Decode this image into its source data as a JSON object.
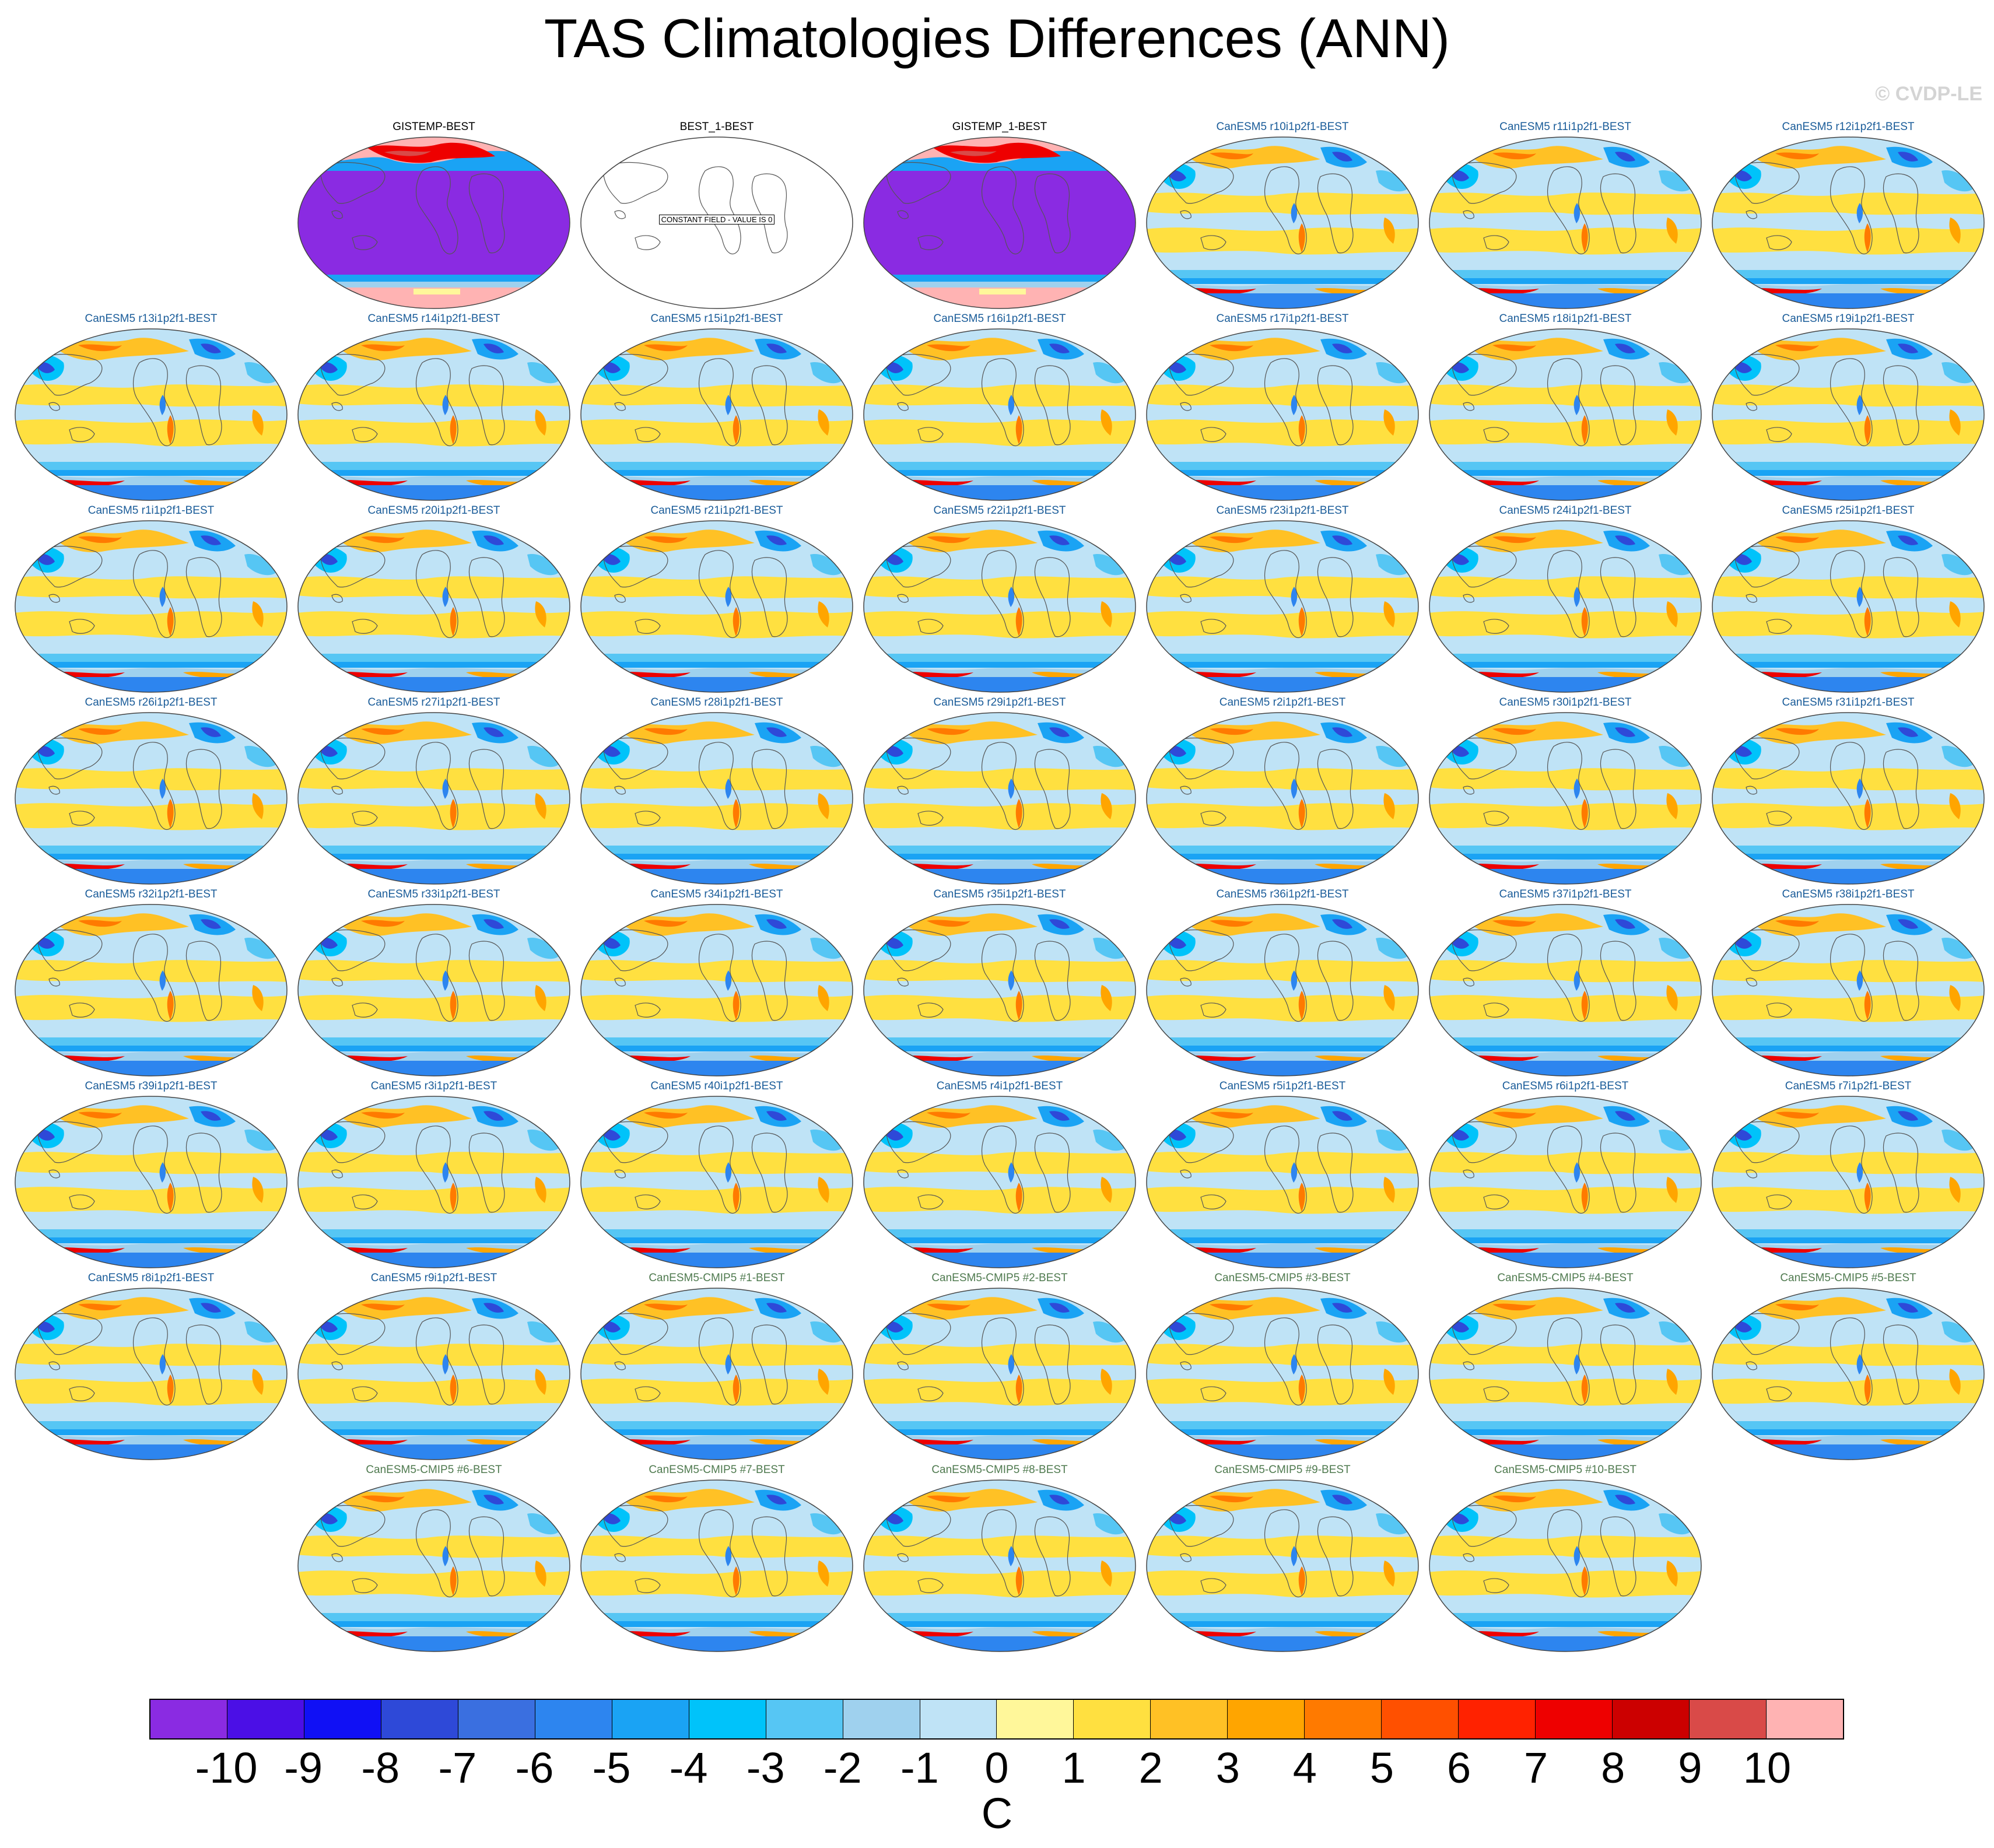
{
  "title": "TAS Climatologies Differences (ANN)",
  "watermark": "© CVDP-LE",
  "colors": {
    "obs_title": "#000000",
    "model_title": "#1a5c99",
    "cmip5_title": "#4f7a4f"
  },
  "chart_data": {
    "type": "heatmap",
    "title": "TAS Climatologies Differences (ANN)",
    "variable": "TAS",
    "season": "ANN",
    "units": "C",
    "projection": "global map panels",
    "colorbar": {
      "levels": [
        -10,
        -9,
        -8,
        -7,
        -6,
        -5,
        -4,
        -3,
        -2,
        -1,
        0,
        1,
        2,
        3,
        4,
        5,
        6,
        7,
        8,
        9,
        10
      ],
      "tick_labels": [
        "-10",
        "-9",
        "-8",
        "-7",
        "-6",
        "-5",
        "-4",
        "-3",
        "-2",
        "-1",
        "0",
        "1",
        "2",
        "3",
        "4",
        "5",
        "6",
        "7",
        "8",
        "9",
        "10"
      ],
      "colors": [
        "#8a2be2",
        "#4b0fe6",
        "#1010f5",
        "#2e49d8",
        "#3a6fe0",
        "#2d85ef",
        "#1aa3f4",
        "#00c3fa",
        "#56c6f4",
        "#9fd1ee",
        "#bfe3f6",
        "#fff79a",
        "#ffe040",
        "#ffc125",
        "#ffa500",
        "#ff7a00",
        "#ff5000",
        "#ff2200",
        "#ee0000",
        "#cc0000",
        "#d94a48",
        "#ffb3b3"
      ]
    },
    "panels": [
      {
        "label": "GISTEMP-BEST",
        "group": "obs",
        "pattern": "obs_bias",
        "row": 0,
        "col": 1
      },
      {
        "label": "BEST_1-BEST",
        "group": "obs",
        "pattern": "constant",
        "note": "CONSTANT FIELD - VALUE IS 0",
        "row": 0,
        "col": 2
      },
      {
        "label": "GISTEMP_1-BEST",
        "group": "obs",
        "pattern": "obs_bias",
        "row": 0,
        "col": 3
      },
      {
        "label": "CanESM5 r10i1p2f1-BEST",
        "group": "model",
        "pattern": "model",
        "row": 0,
        "col": 4
      },
      {
        "label": "CanESM5 r11i1p2f1-BEST",
        "group": "model",
        "pattern": "model",
        "row": 0,
        "col": 5
      },
      {
        "label": "CanESM5 r12i1p2f1-BEST",
        "group": "model",
        "pattern": "model",
        "row": 0,
        "col": 6
      },
      {
        "label": "CanESM5 r13i1p2f1-BEST",
        "group": "model",
        "pattern": "model",
        "row": 1,
        "col": 0
      },
      {
        "label": "CanESM5 r14i1p2f1-BEST",
        "group": "model",
        "pattern": "model",
        "row": 1,
        "col": 1
      },
      {
        "label": "CanESM5 r15i1p2f1-BEST",
        "group": "model",
        "pattern": "model",
        "row": 1,
        "col": 2
      },
      {
        "label": "CanESM5 r16i1p2f1-BEST",
        "group": "model",
        "pattern": "model",
        "row": 1,
        "col": 3
      },
      {
        "label": "CanESM5 r17i1p2f1-BEST",
        "group": "model",
        "pattern": "model",
        "row": 1,
        "col": 4
      },
      {
        "label": "CanESM5 r18i1p2f1-BEST",
        "group": "model",
        "pattern": "model",
        "row": 1,
        "col": 5
      },
      {
        "label": "CanESM5 r19i1p2f1-BEST",
        "group": "model",
        "pattern": "model",
        "row": 1,
        "col": 6
      },
      {
        "label": "CanESM5 r1i1p2f1-BEST",
        "group": "model",
        "pattern": "model",
        "row": 2,
        "col": 0
      },
      {
        "label": "CanESM5 r20i1p2f1-BEST",
        "group": "model",
        "pattern": "model",
        "row": 2,
        "col": 1
      },
      {
        "label": "CanESM5 r21i1p2f1-BEST",
        "group": "model",
        "pattern": "model",
        "row": 2,
        "col": 2
      },
      {
        "label": "CanESM5 r22i1p2f1-BEST",
        "group": "model",
        "pattern": "model",
        "row": 2,
        "col": 3
      },
      {
        "label": "CanESM5 r23i1p2f1-BEST",
        "group": "model",
        "pattern": "model",
        "row": 2,
        "col": 4
      },
      {
        "label": "CanESM5 r24i1p2f1-BEST",
        "group": "model",
        "pattern": "model",
        "row": 2,
        "col": 5
      },
      {
        "label": "CanESM5 r25i1p2f1-BEST",
        "group": "model",
        "pattern": "model",
        "row": 2,
        "col": 6
      },
      {
        "label": "CanESM5 r26i1p2f1-BEST",
        "group": "model",
        "pattern": "model",
        "row": 3,
        "col": 0
      },
      {
        "label": "CanESM5 r27i1p2f1-BEST",
        "group": "model",
        "pattern": "model",
        "row": 3,
        "col": 1
      },
      {
        "label": "CanESM5 r28i1p2f1-BEST",
        "group": "model",
        "pattern": "model",
        "row": 3,
        "col": 2
      },
      {
        "label": "CanESM5 r29i1p2f1-BEST",
        "group": "model",
        "pattern": "model",
        "row": 3,
        "col": 3
      },
      {
        "label": "CanESM5 r2i1p2f1-BEST",
        "group": "model",
        "pattern": "model",
        "row": 3,
        "col": 4
      },
      {
        "label": "CanESM5 r30i1p2f1-BEST",
        "group": "model",
        "pattern": "model",
        "row": 3,
        "col": 5
      },
      {
        "label": "CanESM5 r31i1p2f1-BEST",
        "group": "model",
        "pattern": "model",
        "row": 3,
        "col": 6
      },
      {
        "label": "CanESM5 r32i1p2f1-BEST",
        "group": "model",
        "pattern": "model",
        "row": 4,
        "col": 0
      },
      {
        "label": "CanESM5 r33i1p2f1-BEST",
        "group": "model",
        "pattern": "model",
        "row": 4,
        "col": 1
      },
      {
        "label": "CanESM5 r34i1p2f1-BEST",
        "group": "model",
        "pattern": "model",
        "row": 4,
        "col": 2
      },
      {
        "label": "CanESM5 r35i1p2f1-BEST",
        "group": "model",
        "pattern": "model",
        "row": 4,
        "col": 3
      },
      {
        "label": "CanESM5 r36i1p2f1-BEST",
        "group": "model",
        "pattern": "model",
        "row": 4,
        "col": 4
      },
      {
        "label": "CanESM5 r37i1p2f1-BEST",
        "group": "model",
        "pattern": "model",
        "row": 4,
        "col": 5
      },
      {
        "label": "CanESM5 r38i1p2f1-BEST",
        "group": "model",
        "pattern": "model",
        "row": 4,
        "col": 6
      },
      {
        "label": "CanESM5 r39i1p2f1-BEST",
        "group": "model",
        "pattern": "model",
        "row": 5,
        "col": 0
      },
      {
        "label": "CanESM5 r3i1p2f1-BEST",
        "group": "model",
        "pattern": "model",
        "row": 5,
        "col": 1
      },
      {
        "label": "CanESM5 r40i1p2f1-BEST",
        "group": "model",
        "pattern": "model",
        "row": 5,
        "col": 2
      },
      {
        "label": "CanESM5 r4i1p2f1-BEST",
        "group": "model",
        "pattern": "model",
        "row": 5,
        "col": 3
      },
      {
        "label": "CanESM5 r5i1p2f1-BEST",
        "group": "model",
        "pattern": "model",
        "row": 5,
        "col": 4
      },
      {
        "label": "CanESM5 r6i1p2f1-BEST",
        "group": "model",
        "pattern": "model",
        "row": 5,
        "col": 5
      },
      {
        "label": "CanESM5 r7i1p2f1-BEST",
        "group": "model",
        "pattern": "model",
        "row": 5,
        "col": 6
      },
      {
        "label": "CanESM5 r8i1p2f1-BEST",
        "group": "model",
        "pattern": "model",
        "row": 6,
        "col": 0
      },
      {
        "label": "CanESM5 r9i1p2f1-BEST",
        "group": "model",
        "pattern": "model",
        "row": 6,
        "col": 1
      },
      {
        "label": "CanESM5-CMIP5 #1-BEST",
        "group": "cmip5",
        "pattern": "model",
        "row": 6,
        "col": 2
      },
      {
        "label": "CanESM5-CMIP5 #2-BEST",
        "group": "cmip5",
        "pattern": "model",
        "row": 6,
        "col": 3
      },
      {
        "label": "CanESM5-CMIP5 #3-BEST",
        "group": "cmip5",
        "pattern": "model",
        "row": 6,
        "col": 4
      },
      {
        "label": "CanESM5-CMIP5 #4-BEST",
        "group": "cmip5",
        "pattern": "model",
        "row": 6,
        "col": 5
      },
      {
        "label": "CanESM5-CMIP5 #5-BEST",
        "group": "cmip5",
        "pattern": "model",
        "row": 6,
        "col": 6
      },
      {
        "label": "CanESM5-CMIP5 #6-BEST",
        "group": "cmip5",
        "pattern": "model",
        "row": 7,
        "col": 1
      },
      {
        "label": "CanESM5-CMIP5 #7-BEST",
        "group": "cmip5",
        "pattern": "model",
        "row": 7,
        "col": 2
      },
      {
        "label": "CanESM5-CMIP5 #8-BEST",
        "group": "cmip5",
        "pattern": "model",
        "row": 7,
        "col": 3
      },
      {
        "label": "CanESM5-CMIP5 #9-BEST",
        "group": "cmip5",
        "pattern": "model",
        "row": 7,
        "col": 4
      },
      {
        "label": "CanESM5-CMIP5 #10-BEST",
        "group": "cmip5",
        "pattern": "model",
        "row": 7,
        "col": 5
      }
    ]
  }
}
